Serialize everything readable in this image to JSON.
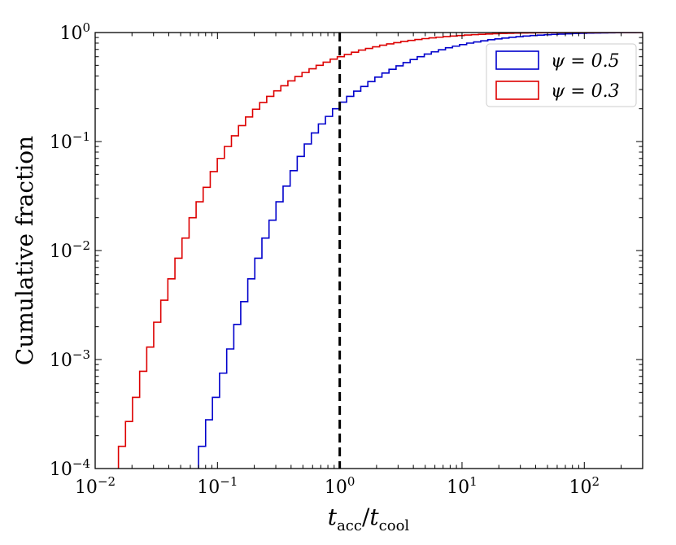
{
  "chart_data": {
    "type": "line",
    "subtype": "cumulative step histogram",
    "title": "",
    "xlabel": "t_acc/t_cool",
    "xlabel_parts": {
      "base1": "t",
      "sub1": "acc",
      "sep": "/",
      "base2": "t",
      "sub2": "cool"
    },
    "ylabel": "Cumulative fraction",
    "xscale": "log",
    "yscale": "log",
    "xlim": [
      0.01,
      300
    ],
    "ylim": [
      0.0001,
      1
    ],
    "x_ticks": [
      {
        "value": 0.01,
        "base": "10",
        "exp": "−2"
      },
      {
        "value": 0.1,
        "base": "10",
        "exp": "−1"
      },
      {
        "value": 1,
        "base": "10",
        "exp": "0"
      },
      {
        "value": 10,
        "base": "10",
        "exp": "1"
      },
      {
        "value": 100,
        "base": "10",
        "exp": "2"
      }
    ],
    "y_ticks": [
      {
        "value": 0.0001,
        "base": "10",
        "exp": "−4"
      },
      {
        "value": 0.001,
        "base": "10",
        "exp": "−3"
      },
      {
        "value": 0.01,
        "base": "10",
        "exp": "−2"
      },
      {
        "value": 0.1,
        "base": "10",
        "exp": "−1"
      },
      {
        "value": 1,
        "base": "10",
        "exp": "0"
      }
    ],
    "vline": {
      "x": 1,
      "style": "dashed",
      "color": "#000000"
    },
    "legend_position": "top-right",
    "series": [
      {
        "name": "ψ = 0.5",
        "color": "#0000cc",
        "bin_edges": [
          0.07,
          0.08,
          0.091,
          0.104,
          0.119,
          0.136,
          0.155,
          0.177,
          0.202,
          0.231,
          0.264,
          0.301,
          0.344,
          0.393,
          0.449,
          0.513,
          0.586,
          0.669,
          0.764,
          0.873,
          0.997,
          1.139,
          1.301,
          1.486,
          1.697,
          1.938,
          2.214,
          2.528,
          2.888,
          3.298,
          3.767,
          4.302,
          4.914,
          5.612,
          6.41,
          7.321,
          8.361,
          9.549,
          10.91,
          12.46,
          14.23,
          16.25,
          18.56,
          21.2,
          24.21,
          27.65,
          31.58,
          36.07,
          41.19,
          47.05,
          53.73,
          61.37,
          70.09,
          80.05,
          91.42,
          104.4,
          119.3,
          136.2,
          155.6,
          177.7,
          203.0,
          231.8,
          264.7,
          300
        ],
        "cum_values": [
          0.00016,
          0.00028,
          0.00045,
          0.00075,
          0.00125,
          0.0021,
          0.0034,
          0.0055,
          0.0085,
          0.013,
          0.019,
          0.028,
          0.039,
          0.054,
          0.073,
          0.095,
          0.12,
          0.145,
          0.17,
          0.2,
          0.23,
          0.26,
          0.29,
          0.32,
          0.355,
          0.39,
          0.425,
          0.46,
          0.495,
          0.53,
          0.565,
          0.6,
          0.635,
          0.665,
          0.695,
          0.725,
          0.75,
          0.775,
          0.8,
          0.82,
          0.84,
          0.86,
          0.875,
          0.89,
          0.905,
          0.917,
          0.928,
          0.938,
          0.947,
          0.955,
          0.962,
          0.968,
          0.974,
          0.979,
          0.983,
          0.987,
          0.99,
          0.993,
          0.995,
          0.997,
          0.998,
          0.999,
          1.0
        ]
      },
      {
        "name": "ψ = 0.3",
        "color": "#dd0000",
        "bin_edges": [
          0.0155,
          0.0177,
          0.0202,
          0.0231,
          0.0264,
          0.0301,
          0.0344,
          0.0393,
          0.0449,
          0.0513,
          0.0586,
          0.0669,
          0.0764,
          0.0873,
          0.0997,
          0.1139,
          0.1301,
          0.1486,
          0.1697,
          0.1938,
          0.2214,
          0.2528,
          0.2888,
          0.3298,
          0.3767,
          0.4302,
          0.4914,
          0.5612,
          0.641,
          0.7321,
          0.8361,
          0.9549,
          1.091,
          1.246,
          1.423,
          1.625,
          1.856,
          2.12,
          2.421,
          2.765,
          3.158,
          3.607,
          4.119,
          4.705,
          5.373,
          6.137,
          7.009,
          8.005,
          9.142,
          10.44,
          11.93,
          13.62,
          15.56,
          17.77,
          20.3,
          23.18,
          26.47,
          30.24,
          34.53,
          39.44,
          45.04,
          51.44,
          58.75,
          67.1,
          76.63,
          87.52,
          99.95,
          114.2,
          130.4,
          148.9,
          170.1,
          194.2,
          221.8,
          253.3,
          300
        ],
        "cum_values": [
          0.00016,
          0.00027,
          0.00045,
          0.00078,
          0.0013,
          0.0022,
          0.0035,
          0.0055,
          0.0085,
          0.013,
          0.02,
          0.028,
          0.038,
          0.053,
          0.07,
          0.09,
          0.113,
          0.14,
          0.168,
          0.198,
          0.228,
          0.26,
          0.292,
          0.325,
          0.36,
          0.395,
          0.43,
          0.465,
          0.5,
          0.535,
          0.57,
          0.6,
          0.63,
          0.66,
          0.69,
          0.715,
          0.74,
          0.765,
          0.787,
          0.808,
          0.828,
          0.846,
          0.863,
          0.879,
          0.893,
          0.906,
          0.918,
          0.929,
          0.939,
          0.948,
          0.956,
          0.963,
          0.969,
          0.975,
          0.98,
          0.984,
          0.987,
          0.99,
          0.992,
          0.994,
          0.996,
          0.997,
          0.998,
          0.9985,
          0.999,
          0.9993,
          0.9995,
          0.9997,
          0.9998,
          0.9999,
          1.0,
          1.0,
          1.0,
          1.0
        ]
      }
    ]
  }
}
